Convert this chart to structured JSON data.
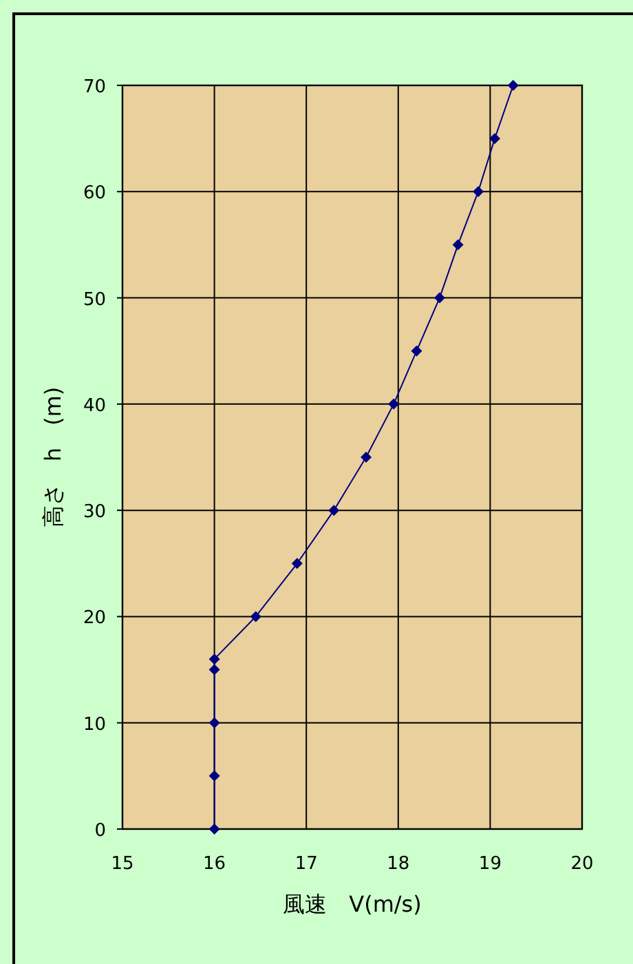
{
  "chart_data": {
    "type": "line",
    "xlabel": "風速　V(m/s)",
    "ylabel": "高さ　h　(m)",
    "x": [
      16,
      16,
      16,
      16,
      16,
      16.45,
      16.9,
      17.3,
      17.65,
      17.95,
      18.2,
      18.45,
      18.65,
      18.87,
      19.05,
      19.25
    ],
    "series": [
      {
        "color": "#000080",
        "values": [
          0,
          5,
          10,
          15,
          16,
          20,
          25,
          30,
          35,
          40,
          45,
          50,
          55,
          60,
          65,
          70
        ]
      }
    ],
    "xlim": [
      15,
      20
    ],
    "ylim": [
      0,
      70
    ],
    "xticks": [
      15,
      16,
      17,
      18,
      19,
      20
    ],
    "yticks": [
      0,
      10,
      20,
      30,
      40,
      50,
      60,
      70
    ],
    "grid": true,
    "marker": "diamond",
    "line_style": "solid"
  }
}
